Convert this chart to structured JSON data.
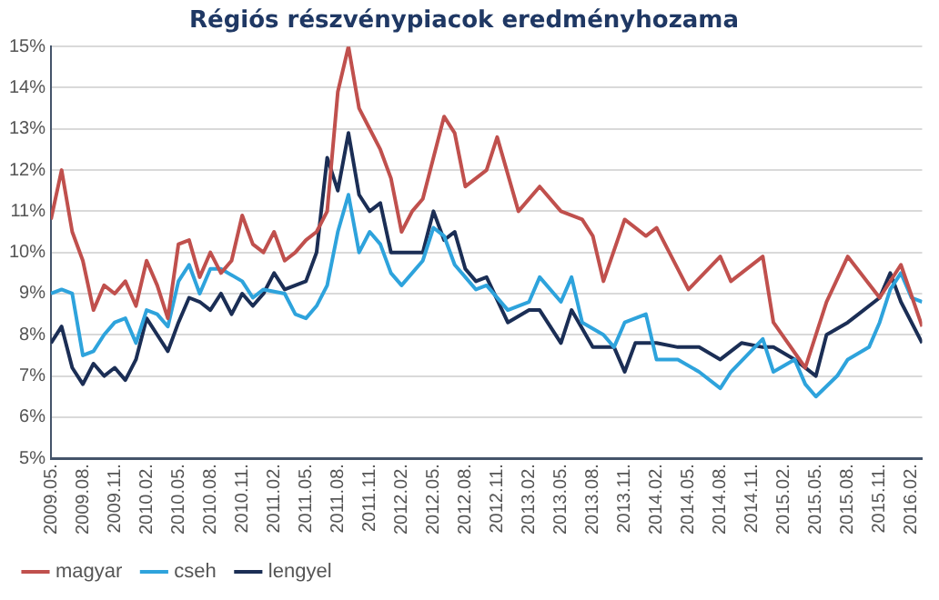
{
  "chart_data": {
    "type": "line",
    "title": "Régiós részvénypiacok eredményhozama",
    "legend": "bottom left",
    "grid": "y",
    "marker": "none",
    "line_style": "solid",
    "xlim": [
      "2009-05",
      "2016-03"
    ],
    "xticks": [
      {
        "value": "2009-05",
        "label": "2009.05."
      },
      {
        "value": "2009-08",
        "label": "2009.08."
      },
      {
        "value": "2009-11",
        "label": "2009.11."
      },
      {
        "value": "2010-02",
        "label": "2010.02."
      },
      {
        "value": "2010-05",
        "label": "2010.05."
      },
      {
        "value": "2010-08",
        "label": "2010.08."
      },
      {
        "value": "2010-11",
        "label": "2010.11."
      },
      {
        "value": "2011-02",
        "label": "2011.02."
      },
      {
        "value": "2011-05",
        "label": "2011.05."
      },
      {
        "value": "2011-08",
        "label": "2011.08."
      },
      {
        "value": "2011-11",
        "label": "2011.11."
      },
      {
        "value": "2012-02",
        "label": "2012.02."
      },
      {
        "value": "2012-05",
        "label": "2012.05."
      },
      {
        "value": "2012-08",
        "label": "2012.08."
      },
      {
        "value": "2012-11",
        "label": "2012.11."
      },
      {
        "value": "2013-02",
        "label": "2013.02."
      },
      {
        "value": "2013-05",
        "label": "2013.05."
      },
      {
        "value": "2013-08",
        "label": "2013.08."
      },
      {
        "value": "2013-11",
        "label": "2013.11."
      },
      {
        "value": "2014-02",
        "label": "2014.02."
      },
      {
        "value": "2014-05",
        "label": "2014.05."
      },
      {
        "value": "2014-08",
        "label": "2014.08."
      },
      {
        "value": "2014-11",
        "label": "2014.11."
      },
      {
        "value": "2015-02",
        "label": "2015.02."
      },
      {
        "value": "2015-05",
        "label": "2015.05."
      },
      {
        "value": "2015-08",
        "label": "2015.08."
      },
      {
        "value": "2015-11",
        "label": "2015.11."
      },
      {
        "value": "2016-02",
        "label": "2016.02."
      }
    ],
    "ylim": [
      5,
      15
    ],
    "yticks": [
      {
        "value": 5,
        "label": "5%"
      },
      {
        "value": 6,
        "label": "6%"
      },
      {
        "value": 7,
        "label": "7%"
      },
      {
        "value": 8,
        "label": "8%"
      },
      {
        "value": 9,
        "label": "9%"
      },
      {
        "value": 10,
        "label": "10%"
      },
      {
        "value": 11,
        "label": "11%"
      },
      {
        "value": 12,
        "label": "12%"
      },
      {
        "value": 13,
        "label": "13%"
      },
      {
        "value": 14,
        "label": "14%"
      },
      {
        "value": 15,
        "label": "15%"
      }
    ],
    "series": [
      {
        "name": "magyar",
        "color": "#c0504d",
        "x": [
          "2009-05",
          "2009-06",
          "2009-07",
          "2009-08",
          "2009-09",
          "2009-10",
          "2009-11",
          "2009-12",
          "2010-01",
          "2010-02",
          "2010-03",
          "2010-04",
          "2010-05",
          "2010-06",
          "2010-07",
          "2010-08",
          "2010-09",
          "2010-10",
          "2010-11",
          "2010-12",
          "2011-01",
          "2011-02",
          "2011-03",
          "2011-04",
          "2011-05",
          "2011-06",
          "2011-07",
          "2011-08",
          "2011-09",
          "2011-10",
          "2011-11",
          "2011-12",
          "2012-01",
          "2012-02",
          "2012-03",
          "2012-04",
          "2012-05",
          "2012-06",
          "2012-07",
          "2012-08",
          "2012-10",
          "2012-11",
          "2012-12",
          "2013-01",
          "2013-03",
          "2013-05",
          "2013-07",
          "2013-08",
          "2013-09",
          "2013-11",
          "2014-01",
          "2014-02",
          "2014-05",
          "2014-08",
          "2014-09",
          "2014-12",
          "2015-01",
          "2015-04",
          "2015-06",
          "2015-08",
          "2015-11",
          "2016-01",
          "2016-03"
        ],
        "values": [
          10.8,
          12.0,
          10.5,
          9.8,
          8.6,
          9.2,
          9.0,
          9.3,
          8.7,
          9.8,
          9.2,
          8.4,
          10.2,
          10.3,
          9.4,
          10.0,
          9.5,
          9.8,
          10.9,
          10.2,
          10.0,
          10.5,
          9.8,
          10.0,
          10.3,
          10.5,
          11.0,
          13.9,
          15.0,
          13.5,
          13.0,
          12.5,
          11.8,
          10.5,
          11.0,
          11.3,
          12.3,
          13.3,
          12.9,
          11.6,
          12.0,
          12.8,
          11.9,
          11.0,
          11.6,
          11.0,
          10.8,
          10.4,
          9.3,
          10.8,
          10.4,
          10.6,
          9.1,
          9.9,
          9.3,
          9.9,
          8.3,
          7.2,
          8.8,
          9.9,
          8.9,
          9.7,
          8.2
        ]
      },
      {
        "name": "cseh",
        "color": "#2ea3dc",
        "x": [
          "2009-05",
          "2009-06",
          "2009-07",
          "2009-08",
          "2009-09",
          "2009-10",
          "2009-11",
          "2009-12",
          "2010-01",
          "2010-02",
          "2010-03",
          "2010-04",
          "2010-05",
          "2010-06",
          "2010-07",
          "2010-08",
          "2010-09",
          "2010-11",
          "2010-12",
          "2011-01",
          "2011-03",
          "2011-04",
          "2011-05",
          "2011-06",
          "2011-07",
          "2011-08",
          "2011-09",
          "2011-10",
          "2011-11",
          "2011-12",
          "2012-01",
          "2012-02",
          "2012-04",
          "2012-05",
          "2012-06",
          "2012-07",
          "2012-09",
          "2012-10",
          "2012-12",
          "2013-02",
          "2013-03",
          "2013-05",
          "2013-06",
          "2013-07",
          "2013-09",
          "2013-10",
          "2013-11",
          "2014-01",
          "2014-02",
          "2014-04",
          "2014-06",
          "2014-08",
          "2014-09",
          "2014-12",
          "2015-01",
          "2015-03",
          "2015-04",
          "2015-05",
          "2015-07",
          "2015-08",
          "2015-10",
          "2015-11",
          "2015-12",
          "2016-01",
          "2016-02",
          "2016-03"
        ],
        "values": [
          9.0,
          9.1,
          9.0,
          7.5,
          7.6,
          8.0,
          8.3,
          8.4,
          7.8,
          8.6,
          8.5,
          8.2,
          9.3,
          9.7,
          9.0,
          9.6,
          9.6,
          9.3,
          8.9,
          9.1,
          9.0,
          8.5,
          8.4,
          8.7,
          9.2,
          10.5,
          11.4,
          10.0,
          10.5,
          10.2,
          9.5,
          9.2,
          9.8,
          10.6,
          10.4,
          9.7,
          9.1,
          9.2,
          8.6,
          8.8,
          9.4,
          8.8,
          9.4,
          8.3,
          8.0,
          7.7,
          8.3,
          8.5,
          7.4,
          7.4,
          7.1,
          6.7,
          7.1,
          7.9,
          7.1,
          7.4,
          6.8,
          6.5,
          7.0,
          7.4,
          7.7,
          8.3,
          9.1,
          9.5,
          8.9,
          8.8
        ]
      },
      {
        "name": "lengyel",
        "color": "#1b2e55",
        "x": [
          "2009-05",
          "2009-06",
          "2009-07",
          "2009-08",
          "2009-09",
          "2009-10",
          "2009-11",
          "2009-12",
          "2010-01",
          "2010-02",
          "2010-03",
          "2010-04",
          "2010-05",
          "2010-06",
          "2010-07",
          "2010-08",
          "2010-09",
          "2010-10",
          "2010-11",
          "2010-12",
          "2011-01",
          "2011-02",
          "2011-03",
          "2011-04",
          "2011-05",
          "2011-06",
          "2011-07",
          "2011-08",
          "2011-09",
          "2011-10",
          "2011-11",
          "2011-12",
          "2012-01",
          "2012-03",
          "2012-04",
          "2012-05",
          "2012-06",
          "2012-07",
          "2012-08",
          "2012-09",
          "2012-10",
          "2012-12",
          "2013-02",
          "2013-03",
          "2013-05",
          "2013-06",
          "2013-08",
          "2013-10",
          "2013-11",
          "2013-12",
          "2014-02",
          "2014-04",
          "2014-06",
          "2014-08",
          "2014-10",
          "2014-12",
          "2015-01",
          "2015-03",
          "2015-05",
          "2015-06",
          "2015-08",
          "2015-09",
          "2015-11",
          "2015-12",
          "2016-01",
          "2016-03"
        ],
        "values": [
          7.8,
          8.2,
          7.2,
          6.8,
          7.3,
          7.0,
          7.2,
          6.9,
          7.4,
          8.4,
          8.0,
          7.6,
          8.3,
          8.9,
          8.8,
          8.6,
          9.0,
          8.5,
          9.0,
          8.7,
          9.0,
          9.5,
          9.1,
          9.2,
          9.3,
          10.0,
          12.3,
          11.5,
          12.9,
          11.4,
          11.0,
          11.2,
          10.0,
          10.0,
          10.0,
          11.0,
          10.3,
          10.5,
          9.6,
          9.3,
          9.4,
          8.3,
          8.6,
          8.6,
          7.8,
          8.6,
          7.7,
          7.7,
          7.1,
          7.8,
          7.8,
          7.7,
          7.7,
          7.4,
          7.8,
          7.7,
          7.7,
          7.4,
          7.0,
          8.0,
          8.3,
          8.5,
          8.9,
          9.5,
          8.8,
          7.8
        ]
      }
    ]
  }
}
